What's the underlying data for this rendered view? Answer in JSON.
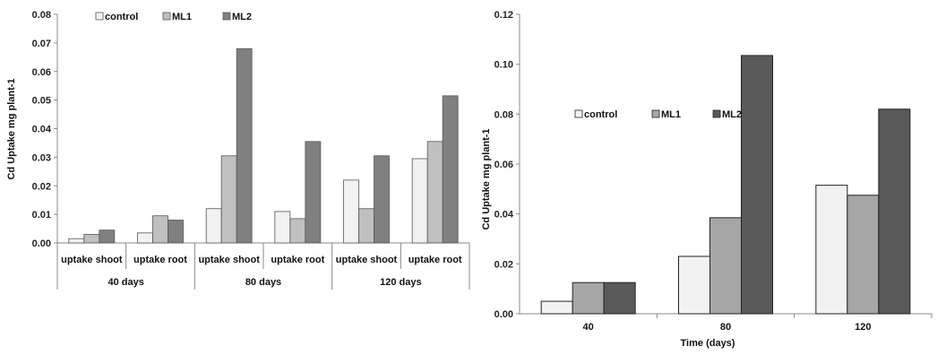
{
  "chart_data": [
    {
      "type": "bar",
      "ylabel": "Cd Uptake mg plant-1",
      "ylim": [
        0,
        0.08
      ],
      "yticks": [
        "0.00",
        "0.01",
        "0.02",
        "0.03",
        "0.04",
        "0.05",
        "0.06",
        "0.07",
        "0.08"
      ],
      "legend_position": "top-left",
      "groups": [
        {
          "label": "40 days",
          "subcategories": [
            "uptake shoot",
            "uptake root"
          ]
        },
        {
          "label": "80 days",
          "subcategories": [
            "uptake shoot",
            "uptake root"
          ]
        },
        {
          "label": "120 days",
          "subcategories": [
            "uptake shoot",
            "uptake root"
          ]
        }
      ],
      "series": [
        {
          "name": "control",
          "color": "#f2f2f2",
          "values": [
            0.0015,
            0.0035,
            0.012,
            0.011,
            0.022,
            0.0295
          ]
        },
        {
          "name": "ML1",
          "color": "#c0c0c0",
          "values": [
            0.003,
            0.0095,
            0.0305,
            0.0085,
            0.012,
            0.0355
          ]
        },
        {
          "name": "ML2",
          "color": "#808080",
          "values": [
            0.0045,
            0.008,
            0.068,
            0.0355,
            0.0305,
            0.0515
          ]
        }
      ]
    },
    {
      "type": "bar",
      "xlabel": "Time (days)",
      "ylabel": "Cd Uptake mg plant-1",
      "ylim": [
        0,
        0.12
      ],
      "yticks": [
        "0.00",
        "0.02",
        "0.04",
        "0.06",
        "0.08",
        "0.10",
        "0.12"
      ],
      "categories": [
        "40",
        "80",
        "120"
      ],
      "legend_position": "middle-left",
      "series": [
        {
          "name": "control",
          "color": "#f2f2f2",
          "values": [
            0.005,
            0.023,
            0.0515
          ]
        },
        {
          "name": "ML1",
          "color": "#a6a6a6",
          "values": [
            0.0125,
            0.0385,
            0.0475
          ]
        },
        {
          "name": "ML2",
          "color": "#595959",
          "values": [
            0.0125,
            0.1035,
            0.082
          ]
        }
      ]
    }
  ]
}
